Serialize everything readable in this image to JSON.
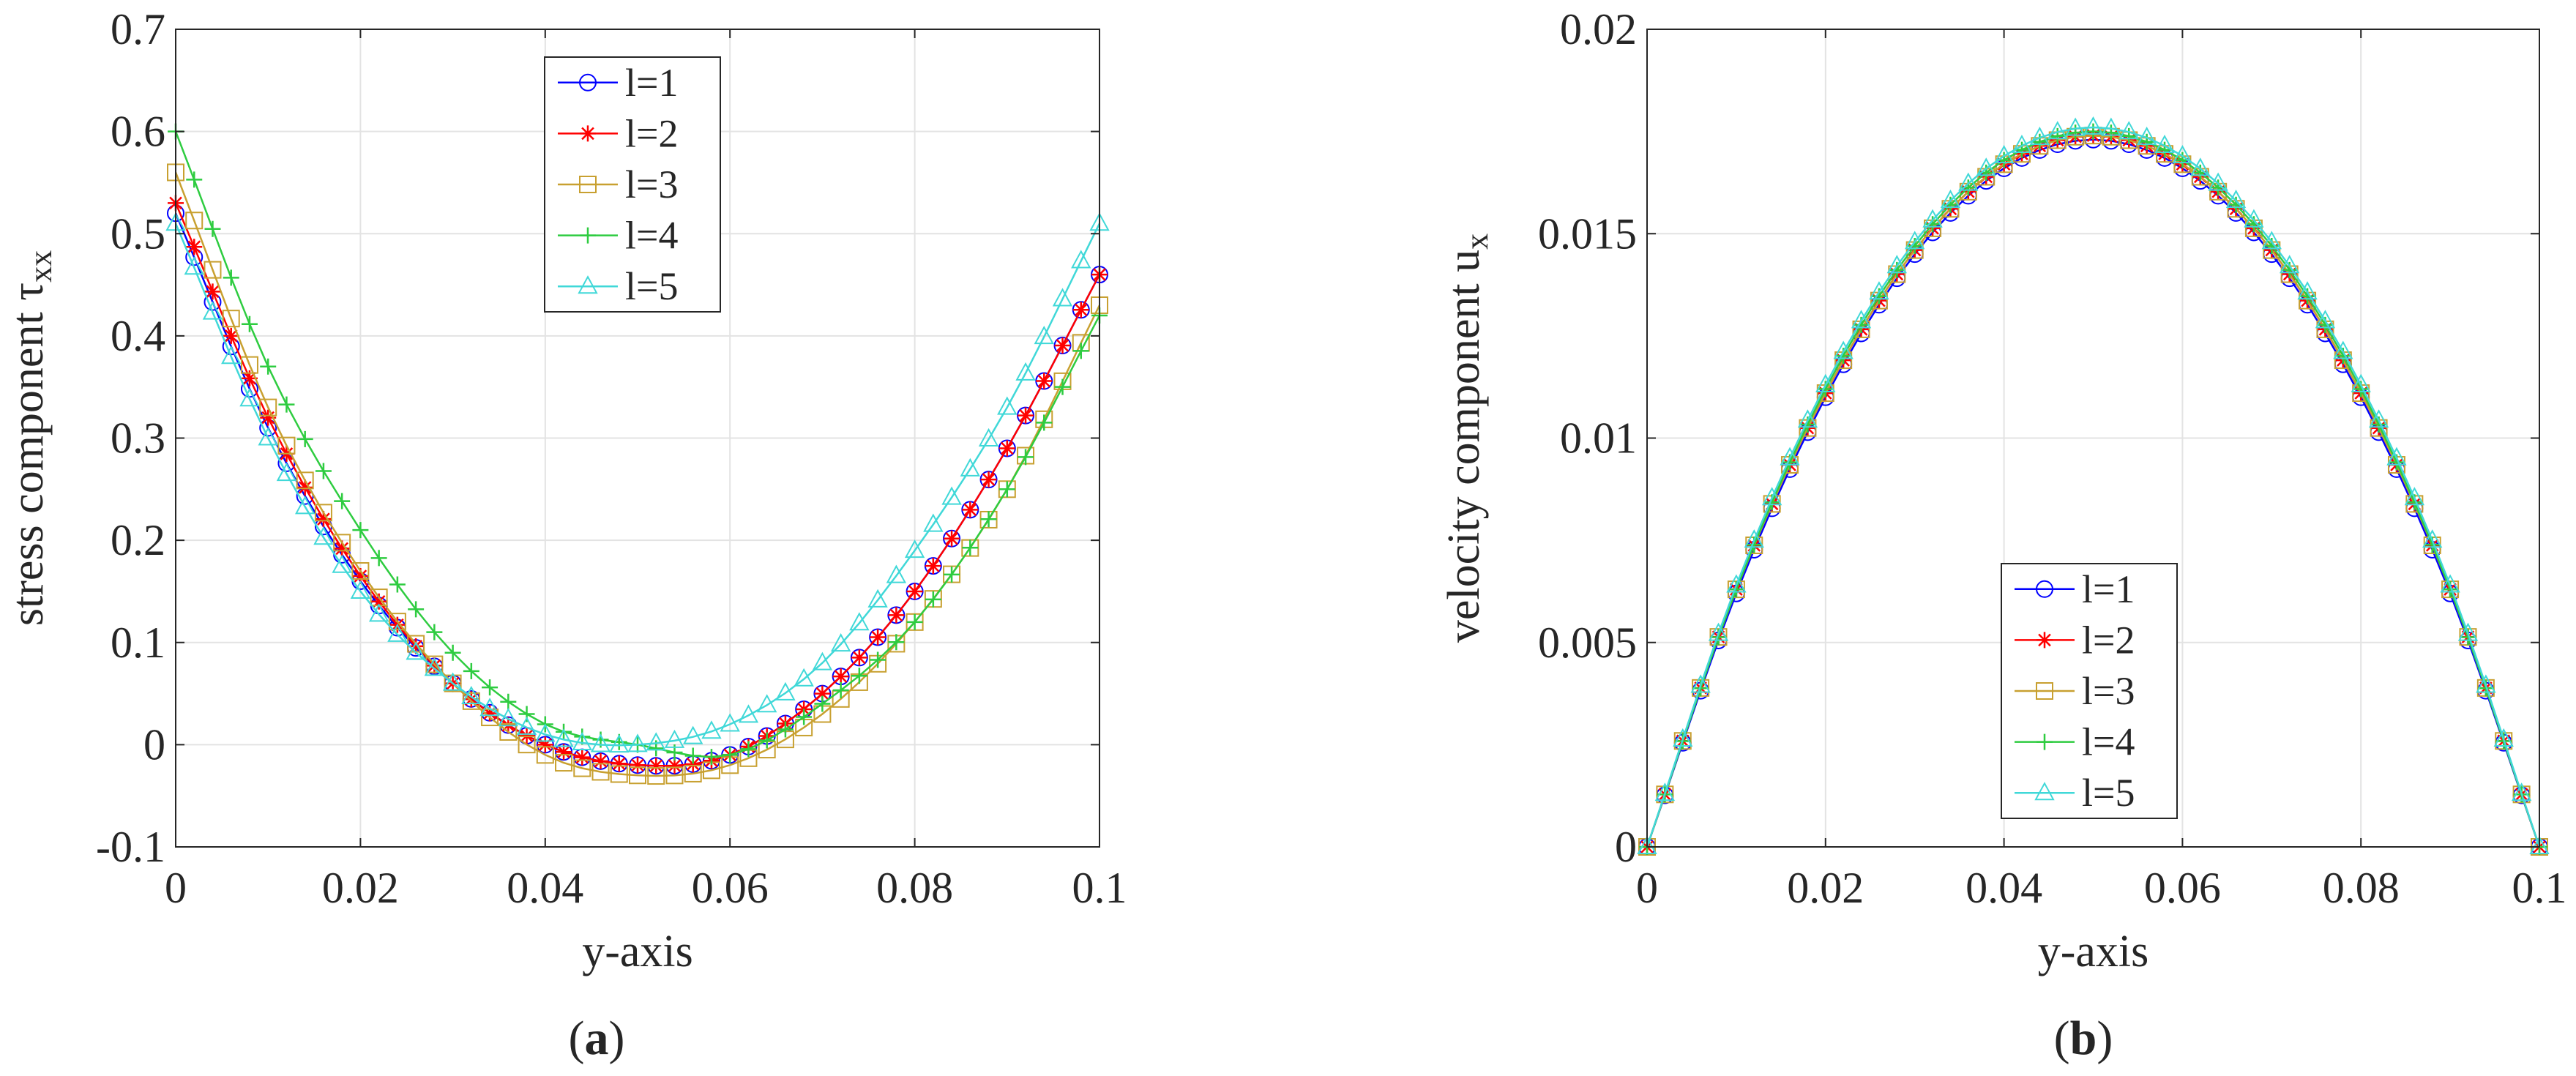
{
  "panels": [
    {
      "label_open": "(",
      "label_letter": "a",
      "label_close": ")",
      "xlabel": "y-axis",
      "ylabel": "stress component τ",
      "ylabel_subscript": "xx",
      "xlim": [
        0,
        0.1
      ],
      "ylim": [
        -0.1,
        0.7
      ],
      "xticks": [
        "0",
        "0.02",
        "0.04",
        "0.06",
        "0.08",
        "0.1"
      ],
      "yticks": [
        "-0.1",
        "0",
        "0.1",
        "0.2",
        "0.3",
        "0.4",
        "0.5",
        "0.6",
        "0.7"
      ],
      "legend_position": "top-center",
      "legend": [
        "l=1",
        "l=2",
        "l=3",
        "l=4",
        "l=5"
      ]
    },
    {
      "label_open": "(",
      "label_letter": "b",
      "label_close": ")",
      "xlabel": "y-axis",
      "ylabel": "velocity component u",
      "ylabel_subscript": "x",
      "xlim": [
        0,
        0.1
      ],
      "ylim": [
        0,
        0.02
      ],
      "xticks": [
        "0",
        "0.02",
        "0.04",
        "0.06",
        "0.08",
        "0.1"
      ],
      "yticks": [
        "0",
        "0.005",
        "0.01",
        "0.015",
        "0.02"
      ],
      "legend_position": "bottom-center",
      "legend": [
        "l=1",
        "l=2",
        "l=3",
        "l=4",
        "l=5"
      ]
    }
  ],
  "chart_data": [
    {
      "type": "line",
      "title": "",
      "xlabel": "y-axis",
      "ylabel": "stress component τxx",
      "xlim": [
        0,
        0.1
      ],
      "ylim": [
        -0.1,
        0.7
      ],
      "grid": true,
      "legend_position": "top-center",
      "x": [
        0,
        0.01,
        0.02,
        0.03,
        0.04,
        0.05,
        0.06,
        0.07,
        0.08,
        0.09,
        0.1
      ],
      "series": [
        {
          "name": "l=1",
          "color": "#0000ff",
          "marker": "circle",
          "values": [
            0.52,
            0.31,
            0.16,
            0.06,
            0.0,
            -0.02,
            -0.01,
            0.05,
            0.15,
            0.29,
            0.46
          ]
        },
        {
          "name": "l=2",
          "color": "#ff0000",
          "marker": "star",
          "values": [
            0.53,
            0.32,
            0.165,
            0.06,
            0.0,
            -0.02,
            -0.01,
            0.05,
            0.15,
            0.29,
            0.46
          ]
        },
        {
          "name": "l=3",
          "color": "#c8a030",
          "marker": "square",
          "values": [
            0.56,
            0.33,
            0.17,
            0.06,
            -0.01,
            -0.03,
            -0.02,
            0.03,
            0.12,
            0.25,
            0.43
          ]
        },
        {
          "name": "l=4",
          "color": "#2ecc40",
          "marker": "plus",
          "values": [
            0.6,
            0.37,
            0.21,
            0.09,
            0.02,
            0.0,
            -0.01,
            0.04,
            0.12,
            0.25,
            0.42
          ]
        },
        {
          "name": "l=5",
          "color": "#40d8d8",
          "marker": "triangle",
          "values": [
            0.51,
            0.3,
            0.15,
            0.06,
            0.01,
            0.0,
            0.02,
            0.08,
            0.19,
            0.33,
            0.51
          ]
        }
      ]
    },
    {
      "type": "line",
      "title": "",
      "xlabel": "y-axis",
      "ylabel": "velocity component ux",
      "xlim": [
        0,
        0.1
      ],
      "ylim": [
        0,
        0.02
      ],
      "grid": true,
      "legend_position": "bottom-center",
      "x": [
        0,
        0.01,
        0.02,
        0.03,
        0.04,
        0.05,
        0.06,
        0.07,
        0.08,
        0.09,
        0.1
      ],
      "series": [
        {
          "name": "l=1",
          "color": "#0000ff",
          "marker": "circle",
          "values": [
            0,
            0.0062,
            0.011,
            0.0145,
            0.0166,
            0.0173,
            0.0166,
            0.0145,
            0.011,
            0.0062,
            0
          ]
        },
        {
          "name": "l=2",
          "color": "#ff0000",
          "marker": "star",
          "values": [
            0,
            0.0063,
            0.0111,
            0.0146,
            0.0167,
            0.0174,
            0.0167,
            0.0146,
            0.0111,
            0.0063,
            0
          ]
        },
        {
          "name": "l=3",
          "color": "#c8a030",
          "marker": "square",
          "values": [
            0,
            0.0063,
            0.0111,
            0.0146,
            0.0167,
            0.0174,
            0.0167,
            0.0146,
            0.0111,
            0.0063,
            0
          ]
        },
        {
          "name": "l=4",
          "color": "#2ecc40",
          "marker": "plus",
          "values": [
            0,
            0.0063,
            0.0112,
            0.0147,
            0.0168,
            0.0175,
            0.0168,
            0.0147,
            0.0112,
            0.0063,
            0
          ]
        },
        {
          "name": "l=5",
          "color": "#40d8d8",
          "marker": "triangle",
          "values": [
            0,
            0.0064,
            0.0113,
            0.0148,
            0.0169,
            0.0176,
            0.0169,
            0.0148,
            0.0113,
            0.0064,
            0
          ]
        }
      ]
    }
  ]
}
